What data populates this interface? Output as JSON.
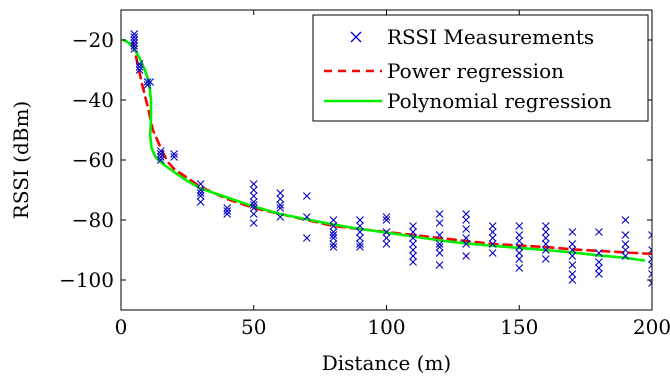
{
  "chart_data": {
    "type": "scatter",
    "xlabel": "Distance (m)",
    "ylabel": "RSSI (dBm)",
    "xlim": [
      0,
      200
    ],
    "ylim": [
      -110,
      -10
    ],
    "xticks": [
      0,
      50,
      100,
      150,
      200
    ],
    "yticks": [
      -100,
      -80,
      -60,
      -40,
      -20
    ],
    "ytick_labels": [
      "−100",
      "−80",
      "−60",
      "−40",
      "−20"
    ],
    "legend_position": "top-right",
    "grid": false,
    "series": [
      {
        "name": "RSSI Measurements",
        "kind": "scatter",
        "marker": "x",
        "color": "#0000cc",
        "points": [
          [
            5,
            -18
          ],
          [
            5,
            -19
          ],
          [
            5,
            -20
          ],
          [
            5,
            -21
          ],
          [
            5,
            -22
          ],
          [
            5,
            -23
          ],
          [
            7,
            -28
          ],
          [
            7,
            -29
          ],
          [
            7,
            -30
          ],
          [
            10,
            -34
          ],
          [
            10,
            -35
          ],
          [
            11,
            -34
          ],
          [
            15,
            -57
          ],
          [
            15,
            -58
          ],
          [
            15,
            -59
          ],
          [
            15,
            -60
          ],
          [
            20,
            -58
          ],
          [
            20,
            -59
          ],
          [
            30,
            -68
          ],
          [
            30,
            -70
          ],
          [
            30,
            -71
          ],
          [
            30,
            -72
          ],
          [
            30,
            -74
          ],
          [
            40,
            -76
          ],
          [
            40,
            -77
          ],
          [
            40,
            -78
          ],
          [
            50,
            -68
          ],
          [
            50,
            -70
          ],
          [
            50,
            -72
          ],
          [
            50,
            -74
          ],
          [
            50,
            -75
          ],
          [
            50,
            -76
          ],
          [
            50,
            -78
          ],
          [
            50,
            -81
          ],
          [
            60,
            -71
          ],
          [
            60,
            -73
          ],
          [
            60,
            -75
          ],
          [
            60,
            -76
          ],
          [
            60,
            -79
          ],
          [
            70,
            -72
          ],
          [
            70,
            -79
          ],
          [
            70,
            -86
          ],
          [
            80,
            -80
          ],
          [
            80,
            -82
          ],
          [
            80,
            -84
          ],
          [
            80,
            -85
          ],
          [
            80,
            -86
          ],
          [
            80,
            -88
          ],
          [
            80,
            -89
          ],
          [
            90,
            -80
          ],
          [
            90,
            -82
          ],
          [
            90,
            -84
          ],
          [
            90,
            -86
          ],
          [
            90,
            -88
          ],
          [
            90,
            -89
          ],
          [
            100,
            -79
          ],
          [
            100,
            -80
          ],
          [
            100,
            -84
          ],
          [
            100,
            -86
          ],
          [
            100,
            -88
          ],
          [
            110,
            -82
          ],
          [
            110,
            -84
          ],
          [
            110,
            -86
          ],
          [
            110,
            -88
          ],
          [
            110,
            -90
          ],
          [
            110,
            -92
          ],
          [
            110,
            -94
          ],
          [
            120,
            -78
          ],
          [
            120,
            -81
          ],
          [
            120,
            -85
          ],
          [
            120,
            -88
          ],
          [
            120,
            -89
          ],
          [
            120,
            -91
          ],
          [
            120,
            -95
          ],
          [
            130,
            -78
          ],
          [
            130,
            -80
          ],
          [
            130,
            -83
          ],
          [
            130,
            -86
          ],
          [
            130,
            -88
          ],
          [
            130,
            -92
          ],
          [
            140,
            -82
          ],
          [
            140,
            -84
          ],
          [
            140,
            -86
          ],
          [
            140,
            -88
          ],
          [
            140,
            -91
          ],
          [
            150,
            -82
          ],
          [
            150,
            -85
          ],
          [
            150,
            -87
          ],
          [
            150,
            -89
          ],
          [
            150,
            -91
          ],
          [
            150,
            -93
          ],
          [
            150,
            -96
          ],
          [
            160,
            -82
          ],
          [
            160,
            -84
          ],
          [
            160,
            -86
          ],
          [
            160,
            -88
          ],
          [
            160,
            -90
          ],
          [
            160,
            -93
          ],
          [
            170,
            -84
          ],
          [
            170,
            -88
          ],
          [
            170,
            -90
          ],
          [
            170,
            -92
          ],
          [
            170,
            -95
          ],
          [
            170,
            -98
          ],
          [
            170,
            -100
          ],
          [
            180,
            -84
          ],
          [
            180,
            -91
          ],
          [
            180,
            -94
          ],
          [
            180,
            -96
          ],
          [
            180,
            -98
          ],
          [
            190,
            -80
          ],
          [
            190,
            -85
          ],
          [
            190,
            -88
          ],
          [
            190,
            -90
          ],
          [
            190,
            -92
          ],
          [
            200,
            -85
          ],
          [
            200,
            -90
          ],
          [
            200,
            -93
          ],
          [
            200,
            -95
          ],
          [
            200,
            -98
          ],
          [
            200,
            -101
          ]
        ]
      },
      {
        "name": "Power regression",
        "kind": "line",
        "dash": true,
        "color": "#ff0000",
        "points": [
          [
            4.5,
            -21
          ],
          [
            5,
            -23
          ],
          [
            6,
            -27
          ],
          [
            7,
            -31
          ],
          [
            8,
            -35
          ],
          [
            10,
            -42
          ],
          [
            12,
            -50
          ],
          [
            14,
            -54
          ],
          [
            16,
            -58
          ],
          [
            18,
            -61
          ],
          [
            20,
            -63
          ],
          [
            25,
            -66
          ],
          [
            30,
            -69
          ],
          [
            35,
            -71
          ],
          [
            40,
            -73
          ],
          [
            50,
            -76
          ],
          [
            60,
            -78
          ],
          [
            70,
            -80
          ],
          [
            80,
            -82
          ],
          [
            90,
            -83
          ],
          [
            100,
            -84
          ],
          [
            110,
            -85
          ],
          [
            120,
            -86
          ],
          [
            130,
            -87
          ],
          [
            140,
            -88
          ],
          [
            150,
            -88.5
          ],
          [
            160,
            -89
          ],
          [
            170,
            -89.8
          ],
          [
            180,
            -90.3
          ],
          [
            190,
            -90.8
          ],
          [
            200,
            -91.3
          ]
        ]
      },
      {
        "name": "Polynomial regression",
        "kind": "line",
        "dash": false,
        "color": "#00ee00",
        "points": [
          [
            1,
            -20
          ],
          [
            3,
            -21
          ],
          [
            5,
            -23
          ],
          [
            7,
            -26
          ],
          [
            9,
            -30
          ],
          [
            10.5,
            -34
          ],
          [
            11.3,
            -40
          ],
          [
            11.3,
            -46
          ],
          [
            11,
            -52
          ],
          [
            11.5,
            -56
          ],
          [
            13,
            -59
          ],
          [
            16,
            -61.5
          ],
          [
            20,
            -64
          ],
          [
            25,
            -67
          ],
          [
            30,
            -69.5
          ],
          [
            40,
            -72.5
          ],
          [
            50,
            -75.5
          ],
          [
            60,
            -78
          ],
          [
            70,
            -79.8
          ],
          [
            80,
            -81.5
          ],
          [
            90,
            -83
          ],
          [
            100,
            -84.2
          ],
          [
            110,
            -85.5
          ],
          [
            120,
            -86.8
          ],
          [
            130,
            -87.8
          ],
          [
            140,
            -88.6
          ],
          [
            150,
            -89.3
          ],
          [
            160,
            -90
          ],
          [
            170,
            -90.8
          ],
          [
            180,
            -91.8
          ],
          [
            190,
            -92.6
          ],
          [
            197,
            -93.5
          ]
        ]
      }
    ]
  }
}
